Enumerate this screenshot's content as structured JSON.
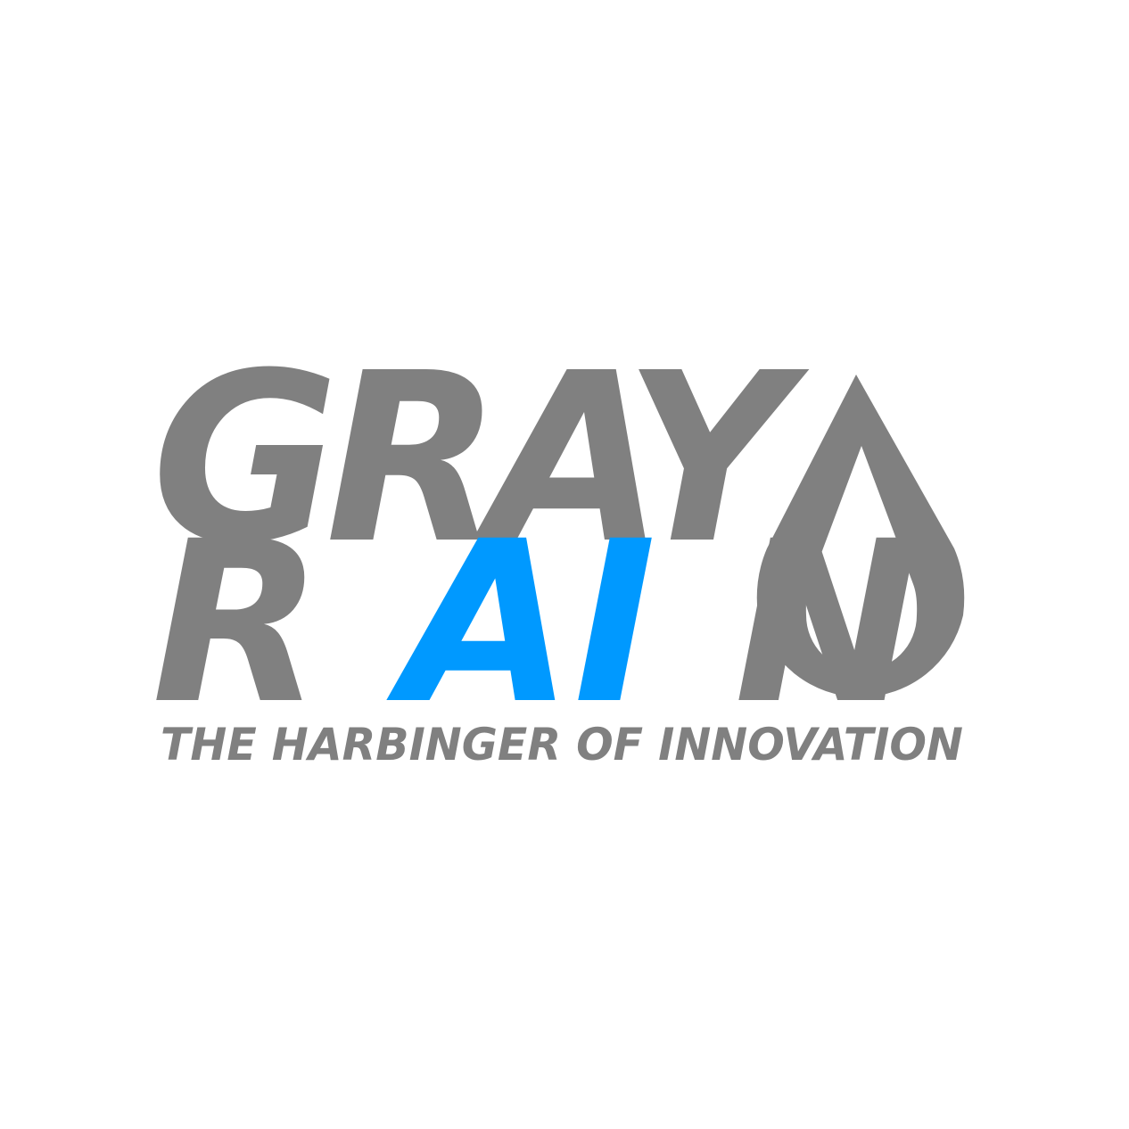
{
  "logo": {
    "line1": "GRAY",
    "line2_start": "R",
    "line2_highlight": "AI",
    "line2_end": "N",
    "tagline": "THE HARBINGER OF INNOVATION",
    "drop_icon": "raindrop-icon"
  },
  "colors": {
    "primary_gray": "#808080",
    "accent_blue": "#0099ff",
    "background": "#ffffff"
  }
}
